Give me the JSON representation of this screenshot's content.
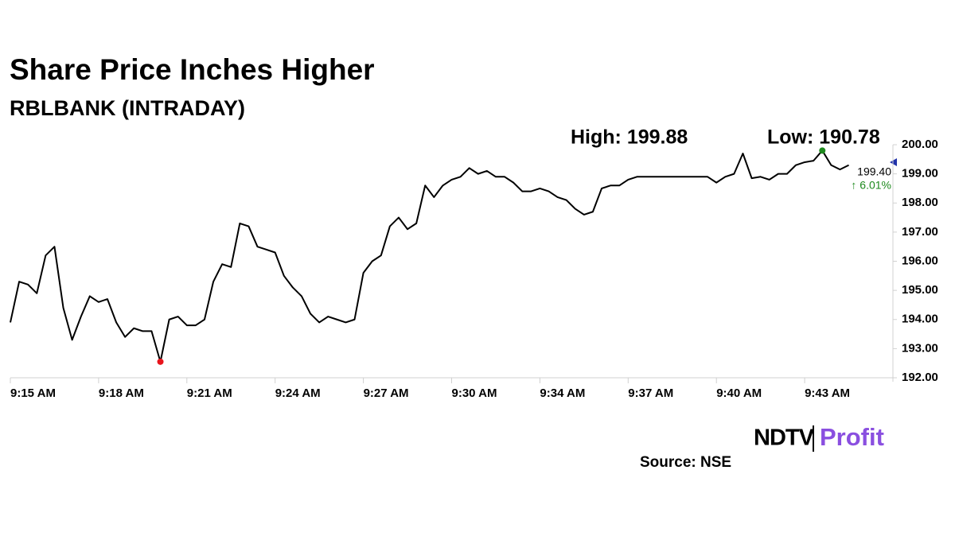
{
  "chart_data": {
    "type": "line",
    "title": "Share Price Inches Higher",
    "subtitle": "RBLBANK (INTRADAY)",
    "annotations": {
      "high": "High: 199.88",
      "low": "Low: 190.78",
      "last_price": "199.40",
      "change": "↑ 6.01%"
    },
    "source": "Source: NSE",
    "logo": {
      "brand": "NDTV",
      "product": "Profit"
    },
    "color": "#000000",
    "low_point": {
      "index": 17,
      "color": "#e8141c"
    },
    "high_point": {
      "index": 92,
      "color": "#1e8a1e"
    },
    "values": [
      193.9,
      195.3,
      195.2,
      194.9,
      196.2,
      196.5,
      194.4,
      193.3,
      194.1,
      194.8,
      194.6,
      194.7,
      193.9,
      193.4,
      193.7,
      193.6,
      193.6,
      192.55,
      194.0,
      194.1,
      193.8,
      193.8,
      194.0,
      195.3,
      195.9,
      195.8,
      197.3,
      197.2,
      196.5,
      196.4,
      196.3,
      195.5,
      195.1,
      194.8,
      194.2,
      193.9,
      194.1,
      194.0,
      193.9,
      194.0,
      195.6,
      196.0,
      196.2,
      197.2,
      197.5,
      197.1,
      197.3,
      198.6,
      198.2,
      198.6,
      198.8,
      198.9,
      199.2,
      199.0,
      199.1,
      198.9,
      198.9,
      198.7,
      198.4,
      198.4,
      198.5,
      198.4,
      198.2,
      198.1,
      197.8,
      197.6,
      197.7,
      198.5,
      198.6,
      198.6,
      198.8,
      198.9,
      198.9,
      198.9,
      198.9,
      198.9,
      198.9,
      198.9,
      198.9,
      198.9,
      198.7,
      198.9,
      199.0,
      199.7,
      198.85,
      198.9,
      198.8,
      199.0,
      199.0,
      199.3,
      199.4,
      199.45,
      199.8,
      199.3,
      199.15,
      199.3
    ],
    "xlim": [
      0,
      100
    ],
    "xticks": [
      {
        "value": 0,
        "label": "9:15 AM"
      },
      {
        "value": 10,
        "label": "9:18 AM"
      },
      {
        "value": 20,
        "label": "9:21 AM"
      },
      {
        "value": 30,
        "label": "9:24 AM"
      },
      {
        "value": 40,
        "label": "9:27 AM"
      },
      {
        "value": 50,
        "label": "9:30 AM"
      },
      {
        "value": 60,
        "label": "9:34 AM"
      },
      {
        "value": 70,
        "label": "9:37 AM"
      },
      {
        "value": 80,
        "label": "9:40 AM"
      },
      {
        "value": 90,
        "label": "9:43 AM"
      }
    ],
    "ylim": [
      192,
      200
    ],
    "yticks": [
      {
        "value": 192,
        "label": "192.00"
      },
      {
        "value": 193,
        "label": "193.00"
      },
      {
        "value": 194,
        "label": "194.00"
      },
      {
        "value": 195,
        "label": "195.00"
      },
      {
        "value": 196,
        "label": "196.00"
      },
      {
        "value": 197,
        "label": "197.00"
      },
      {
        "value": 198,
        "label": "198.00"
      },
      {
        "value": 199,
        "label": "199.00"
      },
      {
        "value": 200,
        "label": "200.00"
      }
    ]
  }
}
